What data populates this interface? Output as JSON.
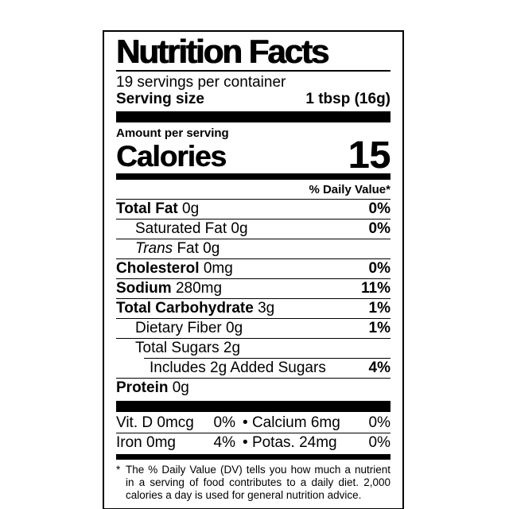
{
  "colors": {
    "ink": "#000000",
    "background": "#ffffff"
  },
  "label": {
    "title": "Nutrition Facts",
    "servings_per_container": "19 servings per container",
    "serving_size_label": "Serving size",
    "serving_size_value": "1 tbsp (16g)",
    "amount_per_serving": "Amount per serving",
    "calories_label": "Calories",
    "calories_value": "15",
    "daily_value_header": "% Daily Value*",
    "rows": [
      {
        "b": "Total Fat",
        "i": "",
        "r": "0g",
        "dv": "0%"
      },
      {
        "b": "",
        "i": "",
        "r": "Saturated Fat 0g",
        "dv": "0%"
      },
      {
        "b": "",
        "i": "Trans",
        "r": "Fat 0g",
        "dv": ""
      },
      {
        "b": "Cholesterol",
        "i": "",
        "r": "0mg",
        "dv": "0%"
      },
      {
        "b": "Sodium",
        "i": "",
        "r": "280mg",
        "dv": "11%"
      },
      {
        "b": "Total Carbohydrate",
        "i": "",
        "r": "3g",
        "dv": "1%"
      },
      {
        "b": "",
        "i": "",
        "r": "Dietary Fiber 0g",
        "dv": "1%"
      },
      {
        "b": "",
        "i": "",
        "r": "Total Sugars 2g",
        "dv": ""
      },
      {
        "b": "",
        "i": "",
        "r": "Includes 2g Added Sugars",
        "dv": "4%"
      },
      {
        "b": "Protein",
        "i": "",
        "r": "0g",
        "dv": ""
      }
    ],
    "micronutrients": [
      {
        "left_name": "Vit. D 0mcg",
        "left_dv": "0%",
        "bullet": "•",
        "right_name": "Calcium 6mg",
        "right_dv": "0%"
      },
      {
        "left_name": "Iron 0mg",
        "left_dv": "4%",
        "bullet": "•",
        "right_name": "Potas. 24mg",
        "right_dv": "0%"
      }
    ],
    "footnote_marker": "*",
    "footnote": "The % Daily Value (DV) tells you how much a nutrient in a serving of food contributes to a daily diet. 2,000 calories a day is used for general nutrition advice."
  }
}
